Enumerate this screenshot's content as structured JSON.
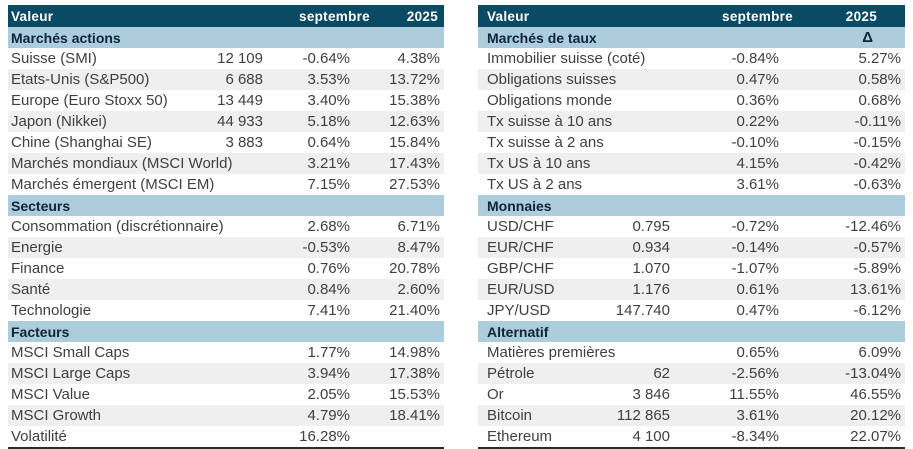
{
  "colors": {
    "header_bg": "#0B4A64",
    "section_bg": "#ACCEDC",
    "stripe_bg": "#EFEFEF",
    "header_text": "#FFFFFF",
    "section_text": "#10233B",
    "body_text": "#3F3F3F"
  },
  "tables": [
    {
      "headers": {
        "valeur": "Valeur",
        "septembre": "septembre",
        "year": "2025"
      },
      "sections": [
        {
          "title": "Marchés actions",
          "delta": "",
          "rows": [
            {
              "label": "Suisse (SMI)",
              "valeur": "12 109",
              "septembre": "-0.64%",
              "y2025": "4.38%"
            },
            {
              "label": "Etats-Unis (S&P500)",
              "valeur": "6 688",
              "septembre": "3.53%",
              "y2025": "13.72%"
            },
            {
              "label": "Europe (Euro Stoxx 50)",
              "valeur": "13 449",
              "septembre": "3.40%",
              "y2025": "15.38%"
            },
            {
              "label": "Japon (Nikkei)",
              "valeur": "44 933",
              "septembre": "5.18%",
              "y2025": "12.63%"
            },
            {
              "label": "Chine (Shanghai SE)",
              "valeur": "3 883",
              "septembre": "0.64%",
              "y2025": "15.84%"
            },
            {
              "label": "Marchés mondiaux (MSCI World)",
              "valeur": "",
              "septembre": "3.21%",
              "y2025": "17.43%"
            },
            {
              "label": "Marchés émergent (MSCI EM)",
              "valeur": "",
              "septembre": "7.15%",
              "y2025": "27.53%"
            }
          ]
        },
        {
          "title": "Secteurs",
          "delta": "",
          "rows": [
            {
              "label": "Consommation (discrétionnaire)",
              "valeur": "",
              "septembre": "2.68%",
              "y2025": "6.71%"
            },
            {
              "label": "Energie",
              "valeur": "",
              "septembre": "-0.53%",
              "y2025": "8.47%"
            },
            {
              "label": "Finance",
              "valeur": "",
              "septembre": "0.76%",
              "y2025": "20.78%"
            },
            {
              "label": "Santé",
              "valeur": "",
              "septembre": "0.84%",
              "y2025": "2.60%"
            },
            {
              "label": "Technologie",
              "valeur": "",
              "septembre": "7.41%",
              "y2025": "21.40%"
            }
          ]
        },
        {
          "title": "Facteurs",
          "delta": "",
          "rows": [
            {
              "label": "MSCI Small Caps",
              "valeur": "",
              "septembre": "1.77%",
              "y2025": "14.98%"
            },
            {
              "label": "MSCI Large Caps",
              "valeur": "",
              "septembre": "3.94%",
              "y2025": "17.38%"
            },
            {
              "label": "MSCI Value",
              "valeur": "",
              "septembre": "2.05%",
              "y2025": "15.53%"
            },
            {
              "label": "MSCI Growth",
              "valeur": "",
              "septembre": "4.79%",
              "y2025": "18.41%"
            },
            {
              "label": "Volatilité",
              "valeur": "",
              "septembre": "16.28%",
              "y2025": ""
            }
          ]
        }
      ]
    },
    {
      "headers": {
        "valeur": "Valeur",
        "septembre": "septembre",
        "year": "2025"
      },
      "sections": [
        {
          "title": "Marchés de taux",
          "delta": "Δ",
          "rows": [
            {
              "label": "Immobilier suisse (coté)",
              "valeur": "",
              "septembre": "-0.84%",
              "y2025": "5.27%"
            },
            {
              "label": "Obligations suisses",
              "valeur": "",
              "septembre": "0.47%",
              "y2025": "0.58%"
            },
            {
              "label": "Obligations monde",
              "valeur": "",
              "septembre": "0.36%",
              "y2025": "0.68%"
            },
            {
              "label": "Tx suisse à 10 ans",
              "valeur": "",
              "septembre": "0.22%",
              "y2025": "-0.11%"
            },
            {
              "label": "Tx suisse à 2 ans",
              "valeur": "",
              "septembre": "-0.10%",
              "y2025": "-0.15%"
            },
            {
              "label": "Tx US à 10 ans",
              "valeur": "",
              "septembre": "4.15%",
              "y2025": "-0.42%"
            },
            {
              "label": "Tx US à 2 ans",
              "valeur": "",
              "septembre": "3.61%",
              "y2025": "-0.63%"
            }
          ]
        },
        {
          "title": "Monnaies",
          "delta": "",
          "rows": [
            {
              "label": "USD/CHF",
              "valeur": "0.795",
              "septembre": "-0.72%",
              "y2025": "-12.46%"
            },
            {
              "label": "EUR/CHF",
              "valeur": "0.934",
              "septembre": "-0.14%",
              "y2025": "-0.57%"
            },
            {
              "label": "GBP/CHF",
              "valeur": "1.070",
              "septembre": "-1.07%",
              "y2025": "-5.89%"
            },
            {
              "label": "EUR/USD",
              "valeur": "1.176",
              "septembre": "0.61%",
              "y2025": "13.61%"
            },
            {
              "label": "JPY/USD",
              "valeur": "147.740",
              "septembre": "0.47%",
              "y2025": "-6.12%"
            }
          ]
        },
        {
          "title": "Alternatif",
          "delta": "",
          "rows": [
            {
              "label": "Matières premières",
              "valeur": "",
              "septembre": "0.65%",
              "y2025": "6.09%"
            },
            {
              "label": "Pétrole",
              "valeur": "62",
              "septembre": "-2.56%",
              "y2025": "-13.04%"
            },
            {
              "label": "Or",
              "valeur": "3 846",
              "septembre": "11.55%",
              "y2025": "46.55%"
            },
            {
              "label": "Bitcoin",
              "valeur": "112 865",
              "septembre": "3.61%",
              "y2025": "20.12%"
            },
            {
              "label": "Ethereum",
              "valeur": "4 100",
              "septembre": "-8.34%",
              "y2025": "22.07%"
            }
          ]
        }
      ]
    }
  ]
}
